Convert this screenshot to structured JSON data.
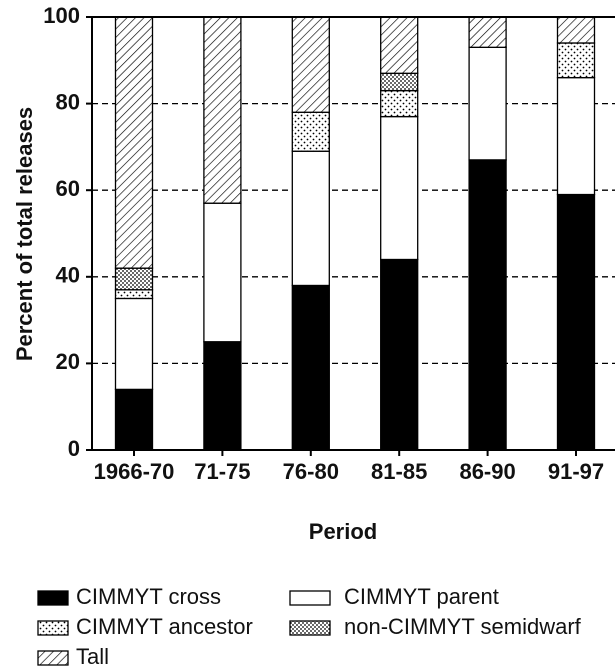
{
  "chart_data": {
    "type": "stacked-bar",
    "y_label": "Percent of total releases",
    "x_label": "Period",
    "categories": [
      "1966-70",
      "71-75",
      "76-80",
      "81-85",
      "86-90",
      "91-97"
    ],
    "series": [
      {
        "name": "CIMMYT cross",
        "color": "#000000",
        "pattern": "solid",
        "values": [
          14,
          25,
          38,
          44,
          67,
          59
        ]
      },
      {
        "name": "CIMMYT parent",
        "color": "#ffffff",
        "pattern": "solid",
        "values": [
          21,
          32,
          31,
          33,
          26,
          27
        ]
      },
      {
        "name": "CIMMYT ancestor",
        "color": "#ffffff",
        "pattern": "sparse-dots",
        "values": [
          2,
          0,
          9,
          6,
          0,
          8
        ]
      },
      {
        "name": "non-CIMMYT semidwarf",
        "color": "#ffffff",
        "pattern": "dense-dots",
        "values": [
          5,
          0,
          0,
          4,
          0,
          0
        ]
      },
      {
        "name": "Tall",
        "color": "#ffffff",
        "pattern": "hatch",
        "values": [
          58,
          43,
          22,
          13,
          7,
          6
        ]
      }
    ],
    "ylim": [
      0,
      100
    ],
    "yticks": [
      0,
      20,
      40,
      60,
      80,
      100
    ],
    "grid": true
  }
}
